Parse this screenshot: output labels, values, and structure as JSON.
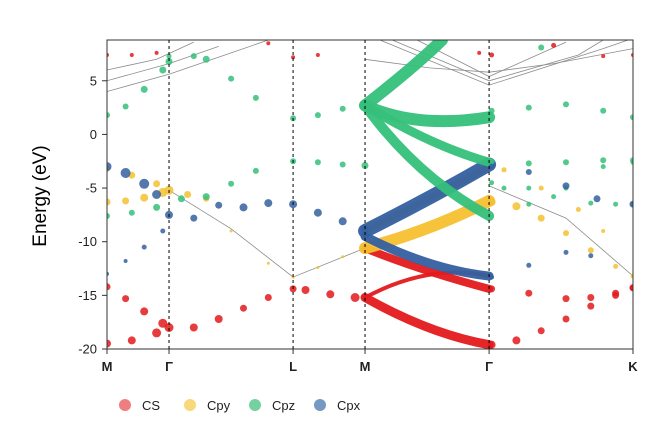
{
  "chart_data": {
    "type": "scatter",
    "title": "",
    "ylabel": "Energy (eV)",
    "xlabel": "",
    "ylim": [
      -20,
      8.8
    ],
    "yticks": [
      -20,
      -15,
      -10,
      -5,
      0,
      5
    ],
    "kpoints": [
      {
        "label": "M",
        "x": 0.0
      },
      {
        "label": "Γ",
        "x": 0.5
      },
      {
        "label": "L",
        "x": 1.5
      },
      {
        "label": "M",
        "x": 2.08
      },
      {
        "label": "Γ",
        "x": 3.08
      },
      {
        "label": "K",
        "x": 4.24
      }
    ],
    "grid": false,
    "legend_position": "bottom-left",
    "legend": [
      {
        "name": "CS",
        "color": "#e8474a"
      },
      {
        "name": "Cpy",
        "color": "#f5c842"
      },
      {
        "name": "Cpz",
        "color": "#3bbf78"
      },
      {
        "name": "Cpx",
        "color": "#3a6ea5"
      }
    ],
    "colors": {
      "CS": "#e31a1c",
      "Cpy": "#f5c030",
      "Cpz": "#35c07a",
      "Cpx": "#3460a0",
      "band": "#8c8c8c"
    },
    "series": [
      {
        "name": "CS",
        "points": [
          [
            0.0,
            -14.2,
            7
          ],
          [
            0.15,
            -15.3,
            7
          ],
          [
            0.3,
            -16.5,
            8
          ],
          [
            0.45,
            -17.6,
            9
          ],
          [
            0.5,
            -18.0,
            9
          ],
          [
            0.0,
            -19.5,
            8
          ],
          [
            0.2,
            -19.2,
            8
          ],
          [
            0.4,
            -18.5,
            9
          ],
          [
            0.7,
            -18.0,
            8
          ],
          [
            0.9,
            -17.2,
            8
          ],
          [
            1.1,
            -16.2,
            7
          ],
          [
            1.3,
            -15.2,
            7
          ],
          [
            1.5,
            -14.4,
            7
          ],
          [
            1.6,
            -14.5,
            8
          ],
          [
            1.8,
            -14.9,
            8
          ],
          [
            2.0,
            -15.2,
            9
          ],
          [
            3.1,
            -19.6,
            8
          ],
          [
            3.3,
            -19.2,
            8
          ],
          [
            3.5,
            -18.3,
            7
          ],
          [
            3.7,
            -17.2,
            7
          ],
          [
            3.9,
            -16.0,
            7
          ],
          [
            4.1,
            -15.0,
            7
          ],
          [
            4.24,
            -14.3,
            7
          ],
          [
            3.1,
            -14.4,
            7
          ],
          [
            3.4,
            -14.8,
            7
          ],
          [
            3.7,
            -15.3,
            7
          ],
          [
            3.9,
            -15.2,
            7
          ],
          [
            4.1,
            -14.8,
            7
          ],
          [
            4.24,
            -14.3,
            7
          ],
          [
            0.0,
            7.4,
            4
          ],
          [
            0.2,
            7.4,
            4
          ],
          [
            0.4,
            7.6,
            4
          ],
          [
            1.5,
            7.2,
            4
          ],
          [
            1.7,
            7.4,
            4
          ],
          [
            1.3,
            8.5,
            4
          ],
          [
            3.0,
            7.6,
            4
          ],
          [
            3.1,
            7.4,
            5
          ],
          [
            3.6,
            8.3,
            5
          ],
          [
            4.0,
            7.3,
            4
          ],
          [
            4.24,
            7.4,
            4
          ]
        ]
      },
      {
        "name": "Cpy",
        "points": [
          [
            0.0,
            -6.3,
            7
          ],
          [
            0.15,
            -6.2,
            7
          ],
          [
            0.3,
            -5.9,
            8
          ],
          [
            0.45,
            -5.4,
            9
          ],
          [
            0.5,
            -5.2,
            9
          ],
          [
            0.65,
            -5.6,
            7
          ],
          [
            0.8,
            -6.0,
            6
          ],
          [
            0.0,
            -3.2,
            6
          ],
          [
            0.2,
            -3.8,
            7
          ],
          [
            0.4,
            -4.6,
            7
          ],
          [
            1.0,
            -9.0,
            3
          ],
          [
            1.3,
            -12.0,
            3
          ],
          [
            1.5,
            -13.3,
            3
          ],
          [
            1.7,
            -12.4,
            3
          ],
          [
            1.9,
            -11.4,
            3
          ],
          [
            3.1,
            -6.3,
            8
          ],
          [
            3.3,
            -6.7,
            8
          ],
          [
            3.5,
            -7.8,
            7
          ],
          [
            3.7,
            -9.2,
            6
          ],
          [
            3.9,
            -10.8,
            6
          ],
          [
            4.1,
            -12.3,
            5
          ],
          [
            4.24,
            -13.2,
            5
          ],
          [
            3.2,
            -3.3,
            5
          ],
          [
            3.5,
            -5.0,
            5
          ],
          [
            3.8,
            -7.0,
            5
          ],
          [
            4.0,
            -9.0,
            4
          ]
        ]
      },
      {
        "name": "Cpz",
        "points": [
          [
            0.0,
            -7.6,
            6
          ],
          [
            0.2,
            -7.3,
            6
          ],
          [
            0.4,
            -6.8,
            7
          ],
          [
            0.6,
            -6.0,
            7
          ],
          [
            0.8,
            -5.8,
            7
          ],
          [
            1.0,
            -4.6,
            6
          ],
          [
            1.2,
            -3.4,
            6
          ],
          [
            1.5,
            -2.5,
            6
          ],
          [
            1.7,
            -2.6,
            6
          ],
          [
            1.9,
            -2.8,
            6
          ],
          [
            2.08,
            -2.9,
            7
          ],
          [
            0.0,
            1.8,
            6
          ],
          [
            0.15,
            2.6,
            6
          ],
          [
            0.3,
            4.2,
            7
          ],
          [
            0.45,
            6.0,
            7
          ],
          [
            0.5,
            6.8,
            7
          ],
          [
            0.8,
            7.0,
            7
          ],
          [
            1.0,
            5.2,
            6
          ],
          [
            1.2,
            3.4,
            6
          ],
          [
            1.5,
            1.5,
            6
          ],
          [
            1.7,
            1.8,
            6
          ],
          [
            1.9,
            2.4,
            6
          ],
          [
            2.08,
            2.6,
            7
          ],
          [
            0.5,
            7.3,
            5
          ],
          [
            0.7,
            7.3,
            6
          ],
          [
            3.1,
            -2.5,
            6
          ],
          [
            3.4,
            -2.7,
            6
          ],
          [
            3.7,
            -2.6,
            6
          ],
          [
            4.0,
            -2.4,
            6
          ],
          [
            4.24,
            -2.4,
            6
          ],
          [
            3.1,
            2.2,
            6
          ],
          [
            3.4,
            2.5,
            6
          ],
          [
            3.7,
            2.8,
            6
          ],
          [
            4.0,
            2.2,
            6
          ],
          [
            4.24,
            1.6,
            6
          ],
          [
            3.1,
            -4.5,
            5
          ],
          [
            3.4,
            -5.0,
            5
          ],
          [
            3.6,
            -5.8,
            5
          ],
          [
            3.9,
            -6.4,
            5
          ],
          [
            4.1,
            -6.5,
            5
          ],
          [
            4.24,
            -6.5,
            5
          ],
          [
            3.2,
            -5.0,
            5
          ],
          [
            3.4,
            -6.5,
            5
          ],
          [
            3.7,
            -5.0,
            5
          ],
          [
            4.0,
            -3.0,
            5
          ],
          [
            4.24,
            -2.6,
            5
          ],
          [
            3.5,
            8.1,
            6
          ]
        ]
      },
      {
        "name": "Cpx",
        "points": [
          [
            0.0,
            -3.0,
            9
          ],
          [
            0.15,
            -3.6,
            10
          ],
          [
            0.3,
            -4.6,
            10
          ],
          [
            0.4,
            -5.6,
            9
          ],
          [
            0.5,
            -7.5,
            8
          ],
          [
            0.7,
            -7.8,
            7
          ],
          [
            0.9,
            -6.6,
            7
          ],
          [
            1.1,
            -6.8,
            8
          ],
          [
            1.3,
            -6.4,
            8
          ],
          [
            1.5,
            -6.5,
            8
          ],
          [
            1.7,
            -7.3,
            8
          ],
          [
            1.9,
            -8.1,
            8
          ],
          [
            2.08,
            -8.8,
            8
          ],
          [
            0.0,
            -13.0,
            4
          ],
          [
            0.15,
            -11.8,
            4
          ],
          [
            0.3,
            -10.5,
            5
          ],
          [
            0.45,
            -9.0,
            5
          ],
          [
            3.1,
            -3.0,
            6
          ],
          [
            3.4,
            -3.5,
            6
          ],
          [
            3.7,
            -4.8,
            7
          ],
          [
            3.95,
            -6.0,
            7
          ],
          [
            4.24,
            -6.5,
            7
          ],
          [
            3.1,
            -13.3,
            5
          ],
          [
            3.4,
            -12.2,
            5
          ],
          [
            3.7,
            -11.0,
            5
          ],
          [
            3.9,
            -11.3,
            5
          ]
        ]
      }
    ],
    "bands": [
      {
        "name": "CS",
        "points": [
          [
            2.08,
            -15.2
          ],
          [
            2.6,
            -12.0
          ],
          [
            3.08,
            -13.2
          ]
        ],
        "width": 4
      },
      {
        "name": "CS",
        "points": [
          [
            2.08,
            -15.2
          ],
          [
            2.6,
            -18.6
          ],
          [
            3.08,
            -19.6
          ]
        ],
        "width": 9
      },
      {
        "name": "CS",
        "points": [
          [
            2.08,
            -10.6
          ],
          [
            2.5,
            -12.6
          ],
          [
            3.08,
            -14.4
          ]
        ],
        "width": 8
      },
      {
        "name": "Cpy",
        "points": [
          [
            2.08,
            -10.6
          ],
          [
            2.6,
            -9.0
          ],
          [
            3.08,
            -6.2
          ]
        ],
        "width": 12
      },
      {
        "name": "Cpy",
        "points": [
          [
            2.08,
            -9.0
          ],
          [
            2.6,
            -6.0
          ],
          [
            3.08,
            -3.0
          ]
        ],
        "width": 7
      },
      {
        "name": "Cpx",
        "points": [
          [
            2.08,
            -9.0
          ],
          [
            2.6,
            -6.0
          ],
          [
            3.08,
            -2.8
          ]
        ],
        "width": 14
      },
      {
        "name": "Cpx",
        "points": [
          [
            2.08,
            -9.5
          ],
          [
            2.6,
            -12.6
          ],
          [
            3.08,
            -13.2
          ]
        ],
        "width": 9
      },
      {
        "name": "Cpz",
        "points": [
          [
            2.08,
            2.7
          ],
          [
            2.5,
            6.5
          ],
          [
            2.7,
            8.8
          ]
        ],
        "width": 12
      },
      {
        "name": "Cpz",
        "points": [
          [
            2.08,
            2.7
          ],
          [
            2.5,
            0.5
          ],
          [
            3.08,
            1.6
          ]
        ],
        "width": 12
      },
      {
        "name": "Cpz",
        "points": [
          [
            2.08,
            2.7
          ],
          [
            2.5,
            -4.0
          ],
          [
            3.08,
            -7.6
          ]
        ],
        "width": 10
      },
      {
        "name": "Cpz",
        "points": [
          [
            2.08,
            2.7
          ],
          [
            2.6,
            -1.0
          ],
          [
            3.08,
            -2.6
          ]
        ],
        "width": 9
      }
    ]
  }
}
